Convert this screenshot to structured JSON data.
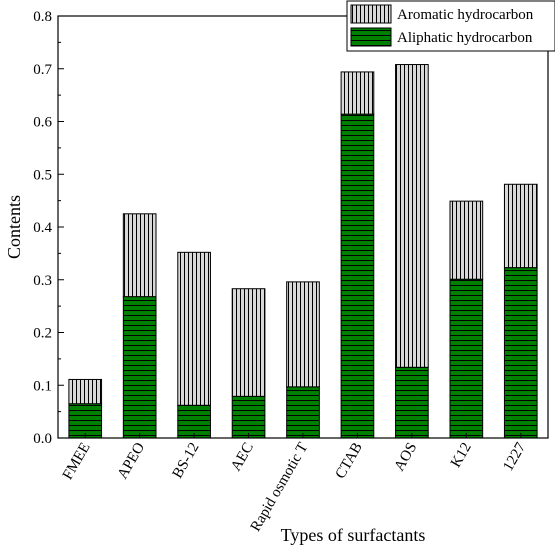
{
  "chart_data": {
    "type": "bar",
    "stacked": true,
    "categories": [
      "FMEE",
      "APEO",
      "BS-12",
      "AEC",
      "Rapid osmotic T",
      "CTAB",
      "AOS",
      "K12",
      "1227"
    ],
    "series": [
      {
        "name": "Aliphatic hydrocarbon",
        "color": "#008000",
        "pattern": "horizontal-lines",
        "values": [
          0.065,
          0.268,
          0.062,
          0.079,
          0.097,
          0.614,
          0.134,
          0.301,
          0.323
        ]
      },
      {
        "name": "Aromatic hydrocarbon",
        "color": "#d0d0d0",
        "pattern": "vertical-lines",
        "values": [
          0.046,
          0.157,
          0.29,
          0.204,
          0.199,
          0.08,
          0.574,
          0.148,
          0.158
        ]
      }
    ],
    "xlabel": "Types of surfactants",
    "ylabel": "Contents",
    "ylim": [
      0,
      0.8
    ],
    "yticks": [
      "0.0",
      "0.1",
      "0.2",
      "0.3",
      "0.4",
      "0.5",
      "0.6",
      "0.7",
      "0.8"
    ],
    "legend_position": "top-right",
    "grid": false
  }
}
